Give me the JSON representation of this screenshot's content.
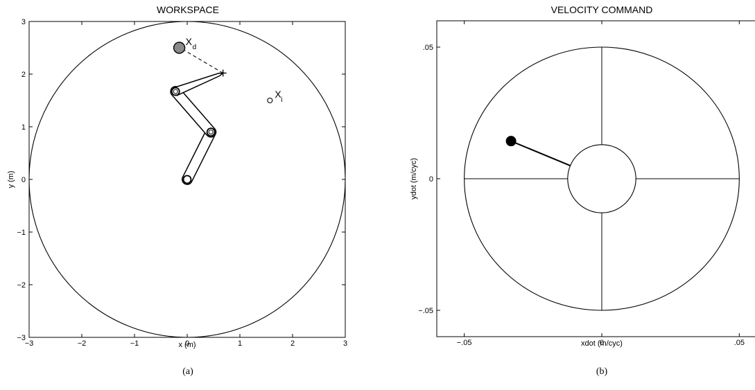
{
  "chart_data": [
    {
      "type": "scatter",
      "title": "WORKSPACE",
      "caption": "(a)",
      "xlabel": "x (m)",
      "ylabel": "y (m)",
      "xlim": [
        -3,
        3
      ],
      "ylim": [
        -3,
        3
      ],
      "xticks": [
        -3,
        -2,
        -1,
        0,
        1,
        2,
        3
      ],
      "yticks": [
        -3,
        -2,
        -1,
        0,
        1,
        2,
        3
      ],
      "grid": false,
      "workspace_radius": 3,
      "arm_joints": [
        {
          "x": 0.0,
          "y": 0.0
        },
        {
          "x": 0.45,
          "y": 0.9
        },
        {
          "x": -0.22,
          "y": 1.67
        },
        {
          "x": 0.68,
          "y": 2.02
        }
      ],
      "desired_point": {
        "x": -0.15,
        "y": 2.5,
        "label_main": "X",
        "label_sub": "d"
      },
      "initial_point": {
        "x": 1.57,
        "y": 1.5,
        "label_main": "X",
        "label_sub": "i"
      },
      "dashed_line": {
        "from": [
          0.68,
          2.02
        ],
        "to": [
          -0.15,
          2.5
        ]
      }
    },
    {
      "type": "scatter",
      "title": "VELOCITY COMMAND",
      "caption": "(b)",
      "xlabel": "xdot (m/cyc)",
      "ylabel": "ydot (m/cyc)",
      "xlim": [
        -0.06,
        0.06
      ],
      "ylim": [
        -0.06,
        0.06
      ],
      "xticks": [
        -0.05,
        0,
        0.05
      ],
      "yticks": [
        -0.05,
        0,
        0.05
      ],
      "grid": false,
      "circle_radius": 0.05,
      "center_circle_radius": 0.004,
      "command_point": {
        "x": -0.033,
        "y": 0.0143
      }
    }
  ]
}
